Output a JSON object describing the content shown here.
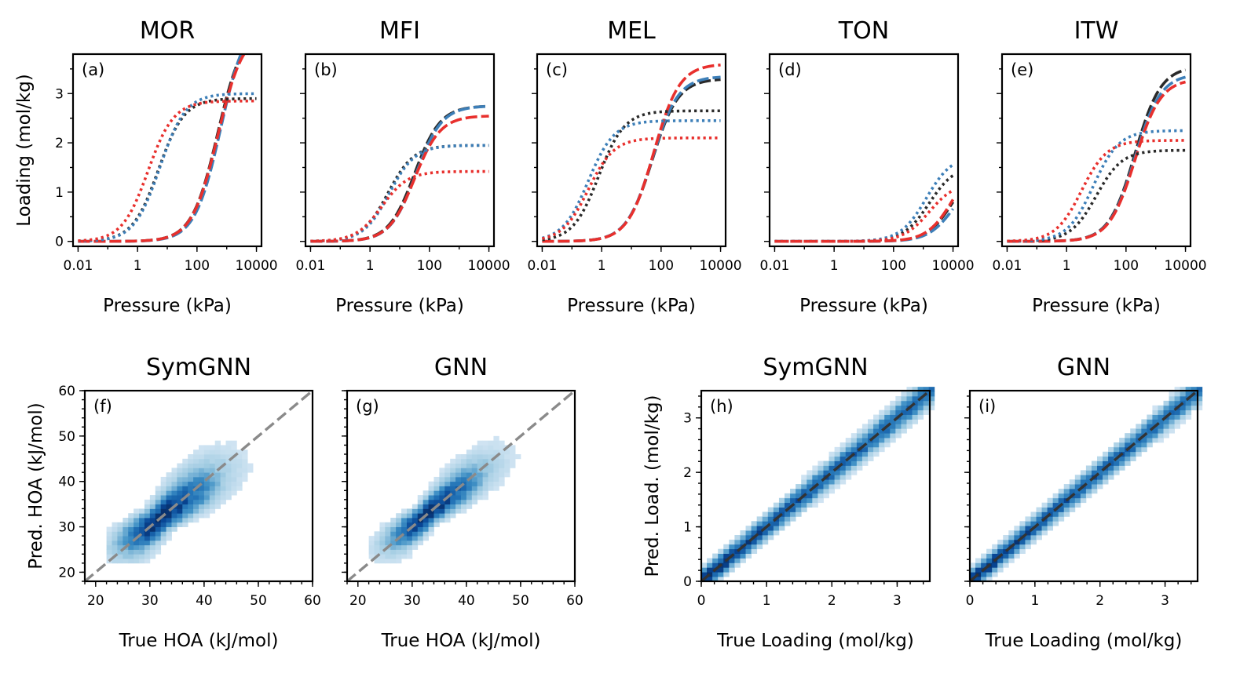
{
  "figure": {
    "colors": {
      "red": "#e8302d",
      "blue": "#3d7fb8",
      "black": "#2a2a2a",
      "identity_gray": "#8a8a8a",
      "identity_dark": "#333333",
      "heat_light": "#dbe9f6",
      "heat_dark": "#08306b"
    }
  },
  "chart_data": [
    {
      "id": "a",
      "type": "line",
      "title": "MOR",
      "panel_label": "(a)",
      "xlabel": "Pressure (kPa)",
      "ylabel": "Loading (mol/kg)",
      "xscale": "log",
      "xlim": [
        0.01,
        10000
      ],
      "ylim": [
        -0.1,
        3.8
      ],
      "xticks": [
        0.01,
        1,
        100,
        10000
      ],
      "xtick_labels": [
        "0.01",
        "1",
        "100",
        "10000"
      ],
      "yticks": [
        0,
        1,
        2,
        3
      ],
      "ytick_labels": [
        "0",
        "1",
        "2",
        "3"
      ],
      "series": [
        {
          "name": "dashed-black",
          "style": "dashed",
          "color": "black",
          "qmax": 4.4,
          "logK": -2.7
        },
        {
          "name": "dashed-blue",
          "style": "dashed",
          "color": "blue",
          "qmax": 4.6,
          "logK": -2.8
        },
        {
          "name": "dashed-red",
          "style": "dashed",
          "color": "red",
          "qmax": 4.3,
          "logK": -2.7
        },
        {
          "name": "dotted-black",
          "style": "dotted",
          "color": "black",
          "qmax": 2.9,
          "logK": -0.7
        },
        {
          "name": "dotted-blue",
          "style": "dotted",
          "color": "blue",
          "qmax": 3.0,
          "logK": -0.75
        },
        {
          "name": "dotted-red",
          "style": "dotted",
          "color": "red",
          "qmax": 2.85,
          "logK": -0.35
        }
      ]
    },
    {
      "id": "b",
      "type": "line",
      "title": "MFI",
      "panel_label": "(b)",
      "xlabel": "Pressure (kPa)",
      "ylabel": "",
      "xscale": "log",
      "xlim": [
        0.01,
        10000
      ],
      "ylim": [
        -0.1,
        3.8
      ],
      "xticks": [
        0.01,
        1,
        100,
        10000
      ],
      "xtick_labels": [
        "0.01",
        "1",
        "100",
        "10000"
      ],
      "yticks": [
        0,
        1,
        2,
        3
      ],
      "ytick_labels": [
        "",
        "",
        "",
        ""
      ],
      "series": [
        {
          "name": "dashed-black",
          "style": "dashed",
          "color": "black",
          "qmax": 2.75,
          "logK": -1.5
        },
        {
          "name": "dashed-blue",
          "style": "dashed",
          "color": "blue",
          "qmax": 2.75,
          "logK": -1.55
        },
        {
          "name": "dashed-red",
          "style": "dashed",
          "color": "red",
          "qmax": 2.55,
          "logK": -1.5
        },
        {
          "name": "dotted-black",
          "style": "dotted",
          "color": "black",
          "qmax": 1.95,
          "logK": -0.6
        },
        {
          "name": "dotted-blue",
          "style": "dotted",
          "color": "blue",
          "qmax": 1.95,
          "logK": -0.65
        },
        {
          "name": "dotted-red",
          "style": "dotted",
          "color": "red",
          "qmax": 1.42,
          "logK": -0.4
        }
      ]
    },
    {
      "id": "c",
      "type": "line",
      "title": "MEL",
      "panel_label": "(c)",
      "xlabel": "Pressure (kPa)",
      "ylabel": "",
      "xscale": "log",
      "xlim": [
        0.01,
        10000
      ],
      "ylim": [
        -0.1,
        3.8
      ],
      "xticks": [
        0.01,
        1,
        100,
        10000
      ],
      "xtick_labels": [
        "0.01",
        "1",
        "100",
        "10000"
      ],
      "yticks": [
        0,
        1,
        2,
        3
      ],
      "ytick_labels": [
        "",
        "",
        "",
        ""
      ],
      "series": [
        {
          "name": "dashed-black",
          "style": "dashed",
          "color": "black",
          "qmax": 3.3,
          "logK": -1.7
        },
        {
          "name": "dashed-blue",
          "style": "dashed",
          "color": "blue",
          "qmax": 3.35,
          "logK": -1.7
        },
        {
          "name": "dashed-red",
          "style": "dashed",
          "color": "red",
          "qmax": 3.6,
          "logK": -1.75
        },
        {
          "name": "dotted-black",
          "style": "dotted",
          "color": "black",
          "qmax": 2.65,
          "logK": 0.1
        },
        {
          "name": "dotted-blue",
          "style": "dotted",
          "color": "blue",
          "qmax": 2.45,
          "logK": 0.45
        },
        {
          "name": "dotted-red",
          "style": "dotted",
          "color": "red",
          "qmax": 2.1,
          "logK": 0.45
        }
      ]
    },
    {
      "id": "d",
      "type": "line",
      "title": "TON",
      "panel_label": "(d)",
      "xlabel": "Pressure (kPa)",
      "ylabel": "",
      "xscale": "log",
      "xlim": [
        0.01,
        10000
      ],
      "ylim": [
        -0.1,
        3.8
      ],
      "xticks": [
        0.01,
        1,
        100,
        10000
      ],
      "xtick_labels": [
        "0.01",
        "1",
        "100",
        "10000"
      ],
      "yticks": [
        0,
        1,
        2,
        3
      ],
      "ytick_labels": [
        "",
        "",
        "",
        ""
      ],
      "series": [
        {
          "name": "dashed-black",
          "style": "dashed",
          "color": "black",
          "qmax": 1.6,
          "logK": -4.0
        },
        {
          "name": "dashed-blue",
          "style": "dashed",
          "color": "blue",
          "qmax": 1.4,
          "logK": -4.05
        },
        {
          "name": "dashed-red",
          "style": "dashed",
          "color": "red",
          "qmax": 1.7,
          "logK": -4.0
        },
        {
          "name": "dotted-black",
          "style": "dotted",
          "color": "black",
          "qmax": 1.55,
          "logK": -3.2
        },
        {
          "name": "dotted-blue",
          "style": "dotted",
          "color": "blue",
          "qmax": 1.75,
          "logK": -3.1
        },
        {
          "name": "dotted-red",
          "style": "dotted",
          "color": "red",
          "qmax": 1.2,
          "logK": -3.2
        }
      ]
    },
    {
      "id": "e",
      "type": "line",
      "title": "ITW",
      "panel_label": "(e)",
      "xlabel": "Pressure (kPa)",
      "ylabel": "",
      "xscale": "log",
      "xlim": [
        0.01,
        10000
      ],
      "ylim": [
        -0.1,
        3.8
      ],
      "xticks": [
        0.01,
        1,
        100,
        10000
      ],
      "xtick_labels": [
        "0.01",
        "1",
        "100",
        "10000"
      ],
      "yticks": [
        0,
        1,
        2,
        3
      ],
      "ytick_labels": [
        "",
        "",
        "",
        ""
      ],
      "series": [
        {
          "name": "dashed-black",
          "style": "dashed",
          "color": "black",
          "qmax": 3.55,
          "logK": -2.3
        },
        {
          "name": "dashed-blue",
          "style": "dashed",
          "color": "blue",
          "qmax": 3.4,
          "logK": -2.3
        },
        {
          "name": "dashed-red",
          "style": "dashed",
          "color": "red",
          "qmax": 3.3,
          "logK": -2.3
        },
        {
          "name": "dotted-black",
          "style": "dotted",
          "color": "black",
          "qmax": 1.85,
          "logK": -1.0
        },
        {
          "name": "dotted-blue",
          "style": "dotted",
          "color": "blue",
          "qmax": 2.25,
          "logK": -0.9
        },
        {
          "name": "dotted-red",
          "style": "dotted",
          "color": "red",
          "qmax": 2.05,
          "logK": -0.5
        }
      ]
    },
    {
      "id": "f",
      "type": "heatmap",
      "title": "SymGNN",
      "panel_label": "(f)",
      "xlabel": "True HOA (kJ/mol)",
      "ylabel": "Pred. HOA (kJ/mol)",
      "xlim": [
        18,
        60
      ],
      "ylim": [
        18,
        60
      ],
      "xticks": [
        20,
        30,
        40,
        50,
        60
      ],
      "xtick_labels": [
        "20",
        "30",
        "40",
        "50",
        "60"
      ],
      "yticks": [
        20,
        30,
        40,
        50,
        60
      ],
      "ytick_labels": [
        "20",
        "30",
        "40",
        "50",
        "60"
      ],
      "bin": 1.0,
      "data_range": [
        22,
        56
      ],
      "center": 31.5,
      "spread_along": 6.0,
      "spread_across": 1.6,
      "identity_line": {
        "from": [
          18,
          18
        ],
        "to": [
          60,
          60
        ],
        "color": "identity_gray"
      }
    },
    {
      "id": "g",
      "type": "heatmap",
      "title": "GNN",
      "panel_label": "(g)",
      "xlabel": "True HOA (kJ/mol)",
      "ylabel": "",
      "xlim": [
        18,
        60
      ],
      "ylim": [
        18,
        60
      ],
      "xticks": [
        20,
        30,
        40,
        50,
        60
      ],
      "xtick_labels": [
        "20",
        "30",
        "40",
        "50",
        "60"
      ],
      "yticks": [
        20,
        30,
        40,
        50,
        60
      ],
      "ytick_labels": [
        "",
        "",
        "",
        "",
        ""
      ],
      "bin": 1.0,
      "data_range": [
        22,
        56
      ],
      "center": 32.5,
      "spread_along": 6.0,
      "spread_across": 1.3,
      "identity_line": {
        "from": [
          18,
          18
        ],
        "to": [
          60,
          60
        ],
        "color": "identity_gray"
      }
    },
    {
      "id": "h",
      "type": "heatmap",
      "title": "SymGNN",
      "panel_label": "(h)",
      "xlabel": "True Loading (mol/kg)",
      "ylabel": "Pred. Load. (mol/kg)",
      "xlim": [
        0,
        3.5
      ],
      "ylim": [
        0,
        3.5
      ],
      "xticks": [
        0,
        1,
        2,
        3
      ],
      "xtick_labels": [
        "0",
        "1",
        "2",
        "3"
      ],
      "yticks": [
        0,
        1,
        2,
        3
      ],
      "ytick_labels": [
        "0",
        "1",
        "2",
        "3"
      ],
      "bin": 0.085,
      "data_range": [
        0,
        3.5
      ],
      "center": 0,
      "spread_along": 0,
      "spread_across": 0.12,
      "identity_line": {
        "from": [
          0,
          0
        ],
        "to": [
          3.5,
          3.5
        ],
        "color": "identity_dark"
      }
    },
    {
      "id": "i",
      "type": "heatmap",
      "title": "GNN",
      "panel_label": "(i)",
      "xlabel": "True Loading (mol/kg)",
      "ylabel": "",
      "xlim": [
        0,
        3.5
      ],
      "ylim": [
        0,
        3.5
      ],
      "xticks": [
        0,
        1,
        2,
        3
      ],
      "xtick_labels": [
        "0",
        "1",
        "2",
        "3"
      ],
      "yticks": [
        0,
        1,
        2,
        3
      ],
      "ytick_labels": [
        "",
        "",
        "",
        ""
      ],
      "bin": 0.085,
      "data_range": [
        0,
        3.5
      ],
      "center": 0,
      "spread_along": 0,
      "spread_across": 0.11,
      "identity_line": {
        "from": [
          0,
          0
        ],
        "to": [
          3.5,
          3.5
        ],
        "color": "identity_dark"
      }
    }
  ]
}
